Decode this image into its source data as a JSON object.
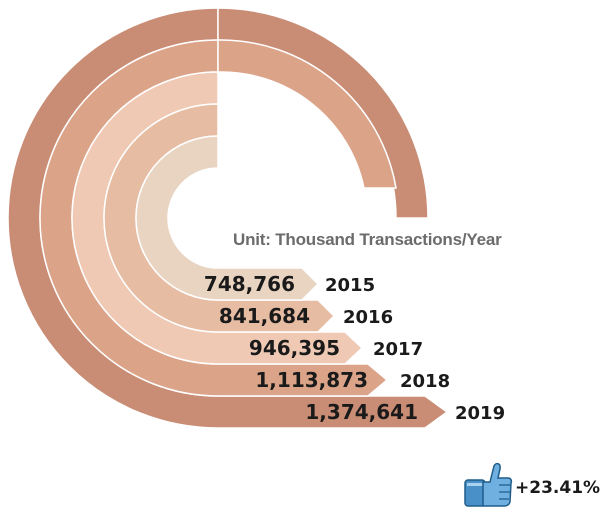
{
  "chart_data": {
    "type": "bar",
    "subtitle": "Unit: Thousand Transactions/Year",
    "categories": [
      "2015",
      "2016",
      "2017",
      "2018",
      "2019"
    ],
    "values": [
      748766,
      841684,
      946395,
      1113873,
      1374641
    ],
    "value_labels": [
      "748,766",
      "841,684",
      "946,395",
      "1,113,873",
      "1,374,641"
    ],
    "colors": [
      "#e9d4c1",
      "#e6bca3",
      "#efc9b4",
      "#dba489",
      "#c98c74"
    ]
  },
  "growth": {
    "label": "+23.41%",
    "icon": "thumbs-up-icon"
  }
}
